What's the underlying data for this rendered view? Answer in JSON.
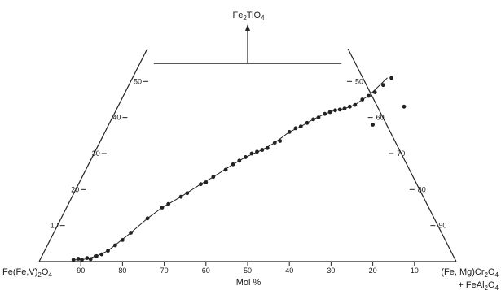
{
  "chart_data": {
    "type": "scatter",
    "subtype": "ternary",
    "apex_labels": {
      "top": [
        "Fe",
        "2",
        "TiO",
        "4"
      ],
      "left": [
        "Fe(Fe,V)",
        "2",
        "O",
        "4"
      ],
      "right_line1": [
        "(Fe, Mg)Cr",
        "2",
        "O",
        "4"
      ],
      "right_line2": [
        "+ FeAl",
        "2",
        "O",
        "4"
      ]
    },
    "axis_label": "Mol %",
    "bottom_ticks": [
      "90",
      "80",
      "70",
      "60",
      "50",
      "40",
      "30",
      "20",
      "10"
    ],
    "left_ticks": [
      "10",
      "20",
      "30",
      "40",
      "50"
    ],
    "right_ticks": [
      "50",
      "60",
      "70",
      "80",
      "90"
    ],
    "view_range": {
      "Fe2TiO4_max": 55
    },
    "grid": false,
    "trend_line": {
      "x_mol_pct_right": [
        8,
        10,
        13,
        15,
        18,
        20,
        22,
        25,
        28,
        30,
        33,
        35,
        38,
        40,
        42,
        44,
        46,
        48,
        50,
        52,
        54,
        55,
        56,
        58
      ],
      "y_mol_pct_top": [
        0.5,
        0.5,
        1.5,
        3,
        8,
        12,
        15,
        18,
        21.5,
        23.5,
        27,
        29,
        31,
        33,
        36,
        37.5,
        39.5,
        41,
        42,
        42.5,
        43.5,
        45,
        46,
        51
      ]
    },
    "series": [
      {
        "x_mol_pct_right": [
          8,
          9,
          10,
          11,
          12,
          13,
          14,
          15,
          16,
          17,
          18,
          20,
          22,
          23,
          25,
          26,
          28,
          29,
          30,
          32,
          33,
          34,
          35,
          36,
          37,
          38,
          39,
          40,
          41,
          42,
          43,
          44,
          45,
          46,
          47,
          48,
          49,
          50,
          51,
          52,
          53,
          54,
          55,
          56,
          57,
          58,
          59
        ],
        "y_mol_pct_top": [
          0.5,
          0.8,
          0.5,
          1,
          0.7,
          1.5,
          2,
          3,
          4.5,
          6,
          8,
          12,
          15,
          16,
          18,
          19,
          21.5,
          22,
          23.5,
          25.5,
          27,
          28,
          29,
          30,
          30.5,
          31,
          31.5,
          33,
          33.5,
          36,
          37,
          37.5,
          38.5,
          39.5,
          40,
          41,
          41.5,
          42,
          42.2,
          42.5,
          43,
          43.5,
          45,
          46,
          47,
          49,
          51
        ]
      },
      {
        "x_mol_pct_right": [
          61,
          66
        ],
        "y_mol_pct_top": [
          38,
          43
        ]
      }
    ]
  }
}
